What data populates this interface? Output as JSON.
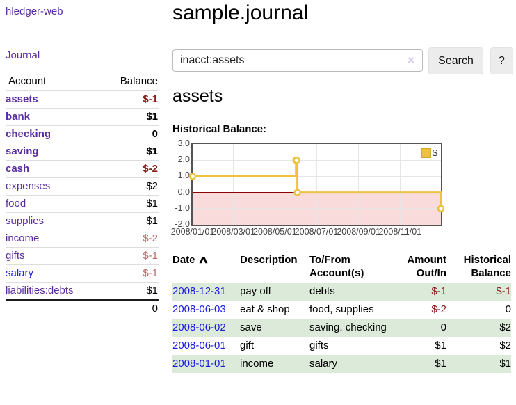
{
  "colors": {
    "link_purple": "#5a2ca0",
    "link_blue": "#2222dd",
    "date_link_blue": "#1a1ae6",
    "negative_dark_red": "#8b1a1a",
    "negative_light_red": "#bb6b6b",
    "row_stripe_green": "#dcead9",
    "series_yellow": "#edc240",
    "chart_border_gray": "#545454"
  },
  "app": {
    "title": "hledger-web",
    "nav_journal": "Journal"
  },
  "sidebar": {
    "header": {
      "account": "Account",
      "balance": "Balance"
    },
    "accounts": [
      {
        "name": "assets",
        "balance": "$-1",
        "level": 1,
        "bold": true,
        "neg": "dark"
      },
      {
        "name": "bank",
        "balance": "$1",
        "level": 2,
        "bold": true
      },
      {
        "name": "checking",
        "balance": "0",
        "level": 3,
        "bold": true
      },
      {
        "name": "saving",
        "balance": "$1",
        "level": 3,
        "bold": true
      },
      {
        "name": "cash",
        "balance": "$-2",
        "level": 2,
        "bold": true,
        "neg": "dark"
      },
      {
        "name": "expenses",
        "balance": "$2",
        "level": 1
      },
      {
        "name": "food",
        "balance": "$1",
        "level": 2
      },
      {
        "name": "supplies",
        "balance": "$1",
        "level": 2
      },
      {
        "name": "income",
        "balance": "$-2",
        "level": 1,
        "neg": "light"
      },
      {
        "name": "gifts",
        "balance": "$-1",
        "level": 2,
        "neg": "light"
      },
      {
        "name": "salary",
        "balance": "$-1",
        "level": 2,
        "neg": "light",
        "link": "blue"
      },
      {
        "name": "liabilities:debts",
        "balance": "$1",
        "level": 1
      }
    ],
    "total": "0"
  },
  "header": {
    "title": "sample.journal"
  },
  "search": {
    "value": "inacct:assets",
    "clear_icon": "×",
    "button_label": "Search",
    "help_label": "?"
  },
  "account_page": {
    "heading": "assets",
    "chart_label": "Historical Balance:"
  },
  "chart_data": {
    "type": "line",
    "step": true,
    "title": "Historical Balance",
    "legend": [
      {
        "name": "$",
        "color": "#edc240"
      }
    ],
    "legend_position": "top-right",
    "grid": true,
    "xlim": [
      "2008-01-01",
      "2008-12-31"
    ],
    "ylim": [
      -2,
      3
    ],
    "x_ticks": [
      "2008/01/01",
      "2008/03/01",
      "2008/05/01",
      "2008/07/01",
      "2008/09/01",
      "2008/11/01"
    ],
    "y_ticks": [
      3.0,
      2.0,
      1.0,
      0.0,
      -1.0,
      -2.0
    ],
    "negative_region_color": "rgba(243,183,183,0.5)",
    "zero_line_color": "#8b0000",
    "series": [
      {
        "name": "$",
        "color": "#edc240",
        "points": [
          [
            "2008-01-01",
            1
          ],
          [
            "2008-06-01",
            2
          ],
          [
            "2008-06-02",
            2
          ],
          [
            "2008-06-03",
            0
          ],
          [
            "2008-12-31",
            -1
          ]
        ]
      }
    ]
  },
  "register": {
    "columns": {
      "date": "Date",
      "sort_icon": "∧",
      "description": "Description",
      "accounts": "To/From Account(s)",
      "amount": "Amount Out/In",
      "balance": "Historical Balance"
    },
    "rows": [
      {
        "date": "2008-12-31",
        "description": "pay off",
        "accounts": "debts",
        "amount": "$-1",
        "amount_negative": true,
        "balance": "$-1",
        "balance_negative": true
      },
      {
        "date": "2008-06-03",
        "description": "eat & shop",
        "accounts": "food, supplies",
        "amount": "$-2",
        "amount_negative": true,
        "balance": "0",
        "balance_negative": false
      },
      {
        "date": "2008-06-02",
        "description": "save",
        "accounts": "saving, checking",
        "amount": "0",
        "amount_negative": false,
        "balance": "$2",
        "balance_negative": false
      },
      {
        "date": "2008-06-01",
        "description": "gift",
        "accounts": "gifts",
        "amount": "$1",
        "amount_negative": false,
        "balance": "$2",
        "balance_negative": false
      },
      {
        "date": "2008-01-01",
        "description": "income",
        "accounts": "salary",
        "amount": "$1",
        "amount_negative": false,
        "balance": "$1",
        "balance_negative": false
      }
    ]
  }
}
